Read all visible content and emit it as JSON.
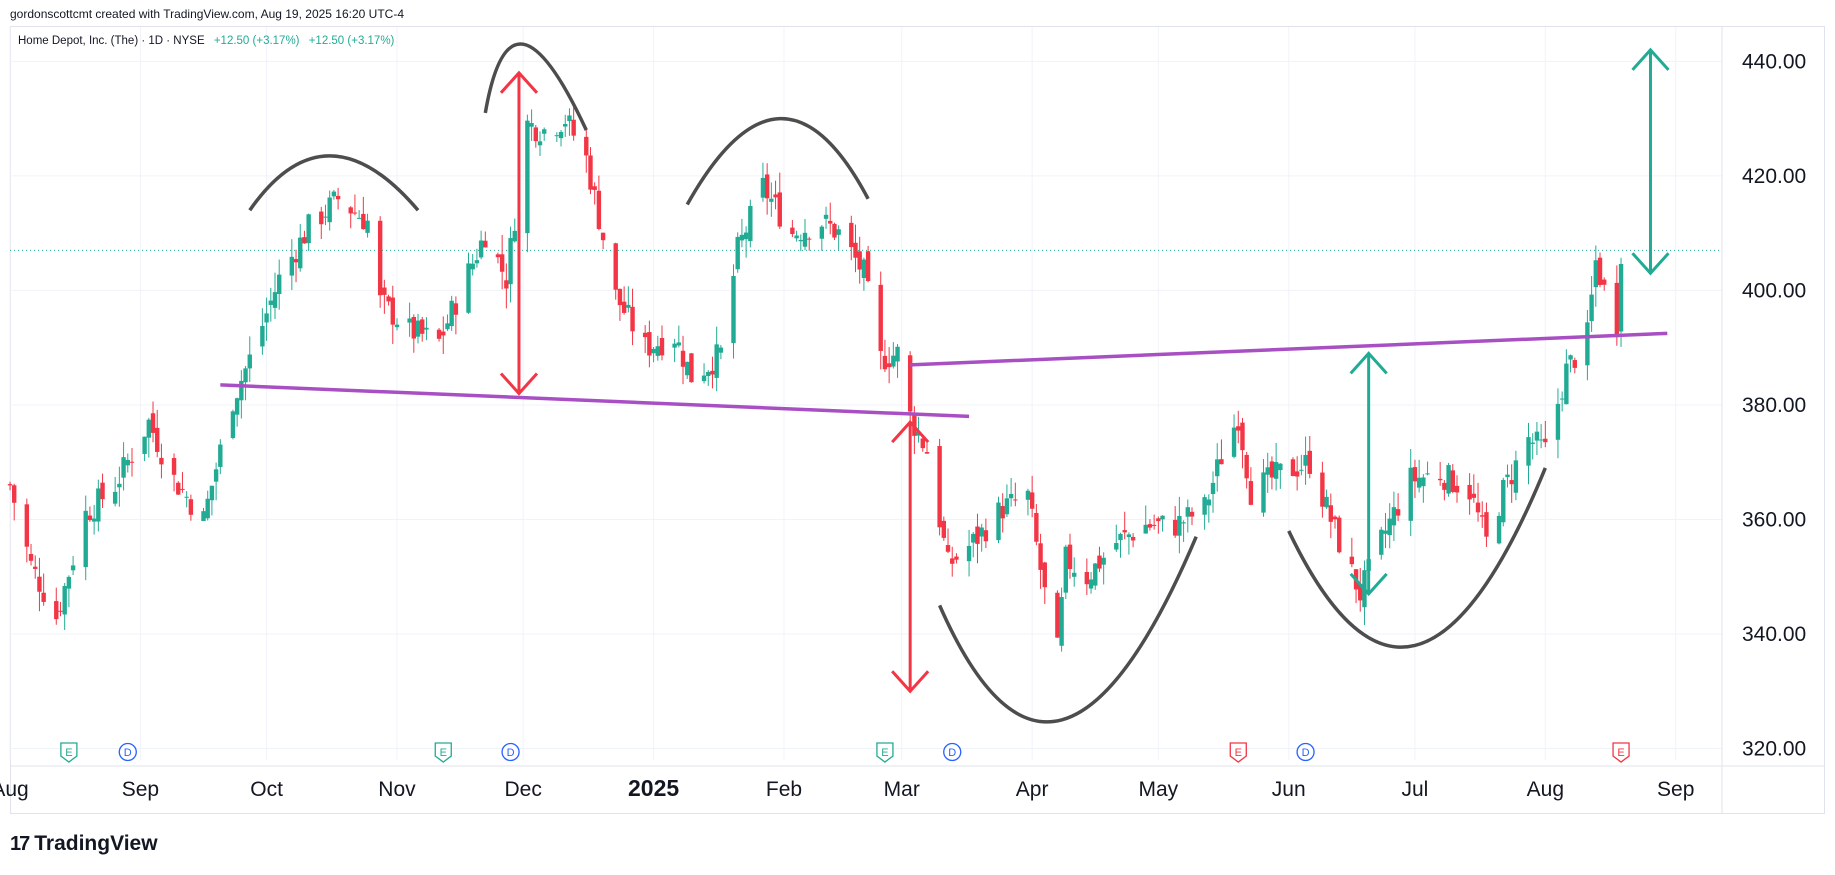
{
  "header": {
    "attribution": "gordonscottcmt created with TradingView.com, Aug 19, 2025 16:20 UTC-4"
  },
  "legend": {
    "symbol": "Home Depot, Inc. (The) · 1D · NYSE",
    "change1": "+12.50 (+3.17%)",
    "change2": "+12.50 (+3.17%)"
  },
  "footer": {
    "brand": "TradingView",
    "logo_glyph": "17"
  },
  "colors": {
    "up": "#22ab94",
    "down": "#f23645",
    "neckline": "#a94fc4",
    "arc": "#4d4d4d",
    "grid": "#f0f3fa",
    "price_line": "#22ab94",
    "earnings": "#22ab94",
    "earnings_red": "#f23645",
    "dividend": "#2962ff"
  },
  "chart_data": {
    "type": "candlestick",
    "title": "Home Depot, Inc. (The) · 1D · NYSE",
    "y_axis": {
      "min": 318,
      "max": 446,
      "ticks": [
        440,
        420,
        400,
        380,
        360,
        340,
        320
      ],
      "tick_labels": [
        "440.00",
        "420.00",
        "400.00",
        "380.00",
        "360.00",
        "340.00",
        "320.00"
      ],
      "position": "right"
    },
    "x_axis": {
      "start": "2024-08-01",
      "end": "2025-09-12",
      "ticks": [
        {
          "date": "2024-08-01",
          "label": "Aug",
          "bold": false
        },
        {
          "date": "2024-09-01",
          "label": "Sep",
          "bold": false
        },
        {
          "date": "2024-10-01",
          "label": "Oct",
          "bold": false
        },
        {
          "date": "2024-11-01",
          "label": "Nov",
          "bold": false
        },
        {
          "date": "2024-12-01",
          "label": "Dec",
          "bold": false
        },
        {
          "date": "2025-01-01",
          "label": "2025",
          "bold": true
        },
        {
          "date": "2025-02-01",
          "label": "Feb",
          "bold": false
        },
        {
          "date": "2025-03-01",
          "label": "Mar",
          "bold": false
        },
        {
          "date": "2025-04-01",
          "label": "Apr",
          "bold": false
        },
        {
          "date": "2025-05-01",
          "label": "May",
          "bold": false
        },
        {
          "date": "2025-06-01",
          "label": "Jun",
          "bold": false
        },
        {
          "date": "2025-07-01",
          "label": "Jul",
          "bold": false
        },
        {
          "date": "2025-08-01",
          "label": "Aug",
          "bold": false
        },
        {
          "date": "2025-09-01",
          "label": "Sep",
          "bold": false
        }
      ]
    },
    "grid": true,
    "last_price": 407,
    "close_path": [
      [
        "2024-08-01",
        366
      ],
      [
        "2024-08-06",
        352
      ],
      [
        "2024-08-12",
        343
      ],
      [
        "2024-08-19",
        361
      ],
      [
        "2024-08-26",
        366
      ],
      [
        "2024-09-03",
        377
      ],
      [
        "2024-09-09",
        367
      ],
      [
        "2024-09-16",
        360
      ],
      [
        "2024-09-23",
        381
      ],
      [
        "2024-09-27",
        388
      ],
      [
        "2024-10-04",
        402
      ],
      [
        "2024-10-11",
        411
      ],
      [
        "2024-10-18",
        416
      ],
      [
        "2024-10-25",
        412
      ],
      [
        "2024-10-28",
        398
      ],
      [
        "2024-11-04",
        393
      ],
      [
        "2024-11-11",
        391
      ],
      [
        "2024-11-15",
        398
      ],
      [
        "2024-11-22",
        410
      ],
      [
        "2024-11-27",
        402
      ],
      [
        "2024-12-02",
        429
      ],
      [
        "2024-12-06",
        428
      ],
      [
        "2024-12-11",
        430
      ],
      [
        "2024-12-16",
        423
      ],
      [
        "2024-12-23",
        399
      ],
      [
        "2024-12-30",
        390
      ],
      [
        "2025-01-06",
        392
      ],
      [
        "2025-01-10",
        385
      ],
      [
        "2025-01-14",
        387
      ],
      [
        "2025-01-17",
        389
      ],
      [
        "2025-01-21",
        407
      ],
      [
        "2025-01-27",
        418
      ],
      [
        "2025-02-03",
        410
      ],
      [
        "2025-02-10",
        412
      ],
      [
        "2025-02-14",
        410
      ],
      [
        "2025-02-20",
        403
      ],
      [
        "2025-02-24",
        388
      ],
      [
        "2025-02-28",
        389
      ],
      [
        "2025-03-03",
        378
      ],
      [
        "2025-03-07",
        372
      ],
      [
        "2025-03-12",
        352
      ],
      [
        "2025-03-18",
        356
      ],
      [
        "2025-03-25",
        362
      ],
      [
        "2025-03-31",
        364
      ],
      [
        "2025-04-04",
        347
      ],
      [
        "2025-04-07",
        337
      ],
      [
        "2025-04-09",
        353
      ],
      [
        "2025-04-14",
        350
      ],
      [
        "2025-04-21",
        356
      ],
      [
        "2025-04-28",
        359
      ],
      [
        "2025-05-05",
        359
      ],
      [
        "2025-05-12",
        362
      ],
      [
        "2025-05-16",
        371
      ],
      [
        "2025-05-20",
        378
      ],
      [
        "2025-05-23",
        365
      ],
      [
        "2025-05-30",
        368
      ],
      [
        "2025-06-06",
        370
      ],
      [
        "2025-06-13",
        356
      ],
      [
        "2025-06-18",
        347
      ],
      [
        "2025-06-24",
        358
      ],
      [
        "2025-06-30",
        367
      ],
      [
        "2025-07-07",
        368
      ],
      [
        "2025-07-14",
        365
      ],
      [
        "2025-07-18",
        356
      ],
      [
        "2025-07-22",
        365
      ],
      [
        "2025-07-28",
        374
      ],
      [
        "2025-08-01",
        372
      ],
      [
        "2025-08-06",
        386
      ],
      [
        "2025-08-11",
        392
      ],
      [
        "2025-08-13",
        405
      ],
      [
        "2025-08-15",
        400
      ],
      [
        "2025-08-18",
        394
      ],
      [
        "2025-08-19",
        407
      ]
    ],
    "annotations": {
      "necklines": [
        {
          "from": [
            "2024-09-20",
            383.5
          ],
          "to": [
            "2025-03-17",
            378
          ]
        },
        {
          "from": [
            "2025-03-03",
            387
          ],
          "to": [
            "2025-08-30",
            392.5
          ]
        }
      ],
      "arcs_top": [
        {
          "from": [
            "2024-09-27",
            414
          ],
          "peak": [
            "2024-10-16",
            423.5
          ],
          "to": [
            "2024-11-06",
            414
          ]
        },
        {
          "from": [
            "2024-11-22",
            431
          ],
          "peak": [
            "2024-12-01",
            443
          ],
          "to": [
            "2024-12-16",
            428
          ]
        },
        {
          "from": [
            "2025-01-09",
            415
          ],
          "peak": [
            "2025-01-31",
            430
          ],
          "to": [
            "2025-02-21",
            416
          ]
        }
      ],
      "arcs_bottom": [
        {
          "from": [
            "2025-03-10",
            345
          ],
          "trough": [
            "2025-04-08",
            325
          ],
          "to": [
            "2025-05-10",
            357
          ]
        },
        {
          "from": [
            "2025-06-01",
            358
          ],
          "trough": [
            "2025-07-01",
            338
          ],
          "to": [
            "2025-08-01",
            369
          ]
        }
      ],
      "arrows": [
        {
          "date": "2024-11-30",
          "from": 438,
          "to": 382,
          "color": "#f23645"
        },
        {
          "date": "2025-03-03",
          "from": 377,
          "to": 330,
          "color": "#f23645"
        },
        {
          "date": "2025-06-20",
          "from": 389,
          "to": 347,
          "color": "#22ab94"
        },
        {
          "date": "2025-08-26",
          "from": 403,
          "to": 442,
          "color": "#22ab94"
        }
      ]
    },
    "events": [
      {
        "date": "2024-08-15",
        "type": "E",
        "color": "#22ab94"
      },
      {
        "date": "2024-08-29",
        "type": "D",
        "color": "#2962ff"
      },
      {
        "date": "2024-11-12",
        "type": "E",
        "color": "#22ab94"
      },
      {
        "date": "2024-11-28",
        "type": "D",
        "color": "#2962ff"
      },
      {
        "date": "2025-02-25",
        "type": "E",
        "color": "#22ab94"
      },
      {
        "date": "2025-03-13",
        "type": "D",
        "color": "#2962ff"
      },
      {
        "date": "2025-05-20",
        "type": "E",
        "color": "#f23645"
      },
      {
        "date": "2025-06-05",
        "type": "D",
        "color": "#2962ff"
      },
      {
        "date": "2025-08-19",
        "type": "E",
        "color": "#f23645"
      }
    ]
  }
}
